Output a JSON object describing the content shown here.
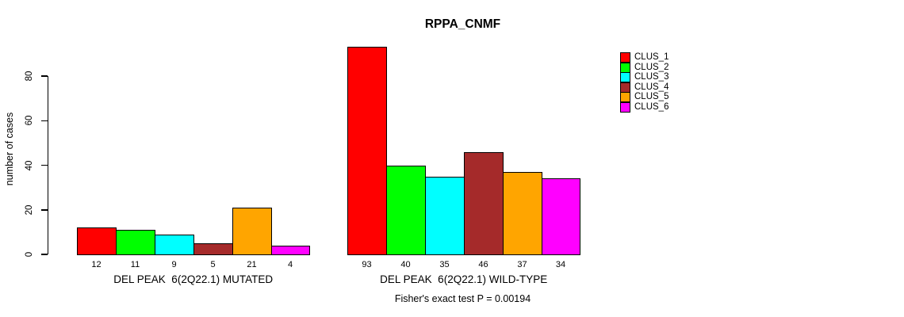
{
  "chart_data": {
    "type": "bar",
    "title": "RPPA_CNMF",
    "ylabel": "number of cases",
    "xlabel": "",
    "yticks": [
      0,
      20,
      40,
      60,
      80
    ],
    "ylim": [
      0,
      93
    ],
    "grid": false,
    "legend_position": "top-right",
    "legend": [
      {
        "label": "CLUS_1",
        "color": "#FF0000"
      },
      {
        "label": "CLUS_2",
        "color": "#00FF00"
      },
      {
        "label": "CLUS_3",
        "color": "#00FFFF"
      },
      {
        "label": "CLUS_4",
        "color": "#A52A2A"
      },
      {
        "label": "CLUS_5",
        "color": "#FFA500"
      },
      {
        "label": "CLUS_6",
        "color": "#FF00FF"
      }
    ],
    "groups": [
      {
        "label": "DEL PEAK  6(2Q22.1) MUTATED",
        "values": [
          12,
          11,
          9,
          5,
          21,
          4
        ]
      },
      {
        "label": "DEL PEAK  6(2Q22.1) WILD-TYPE",
        "values": [
          93,
          40,
          35,
          46,
          37,
          34
        ]
      }
    ],
    "footnote": "Fisher's exact test P = 0.00194"
  }
}
